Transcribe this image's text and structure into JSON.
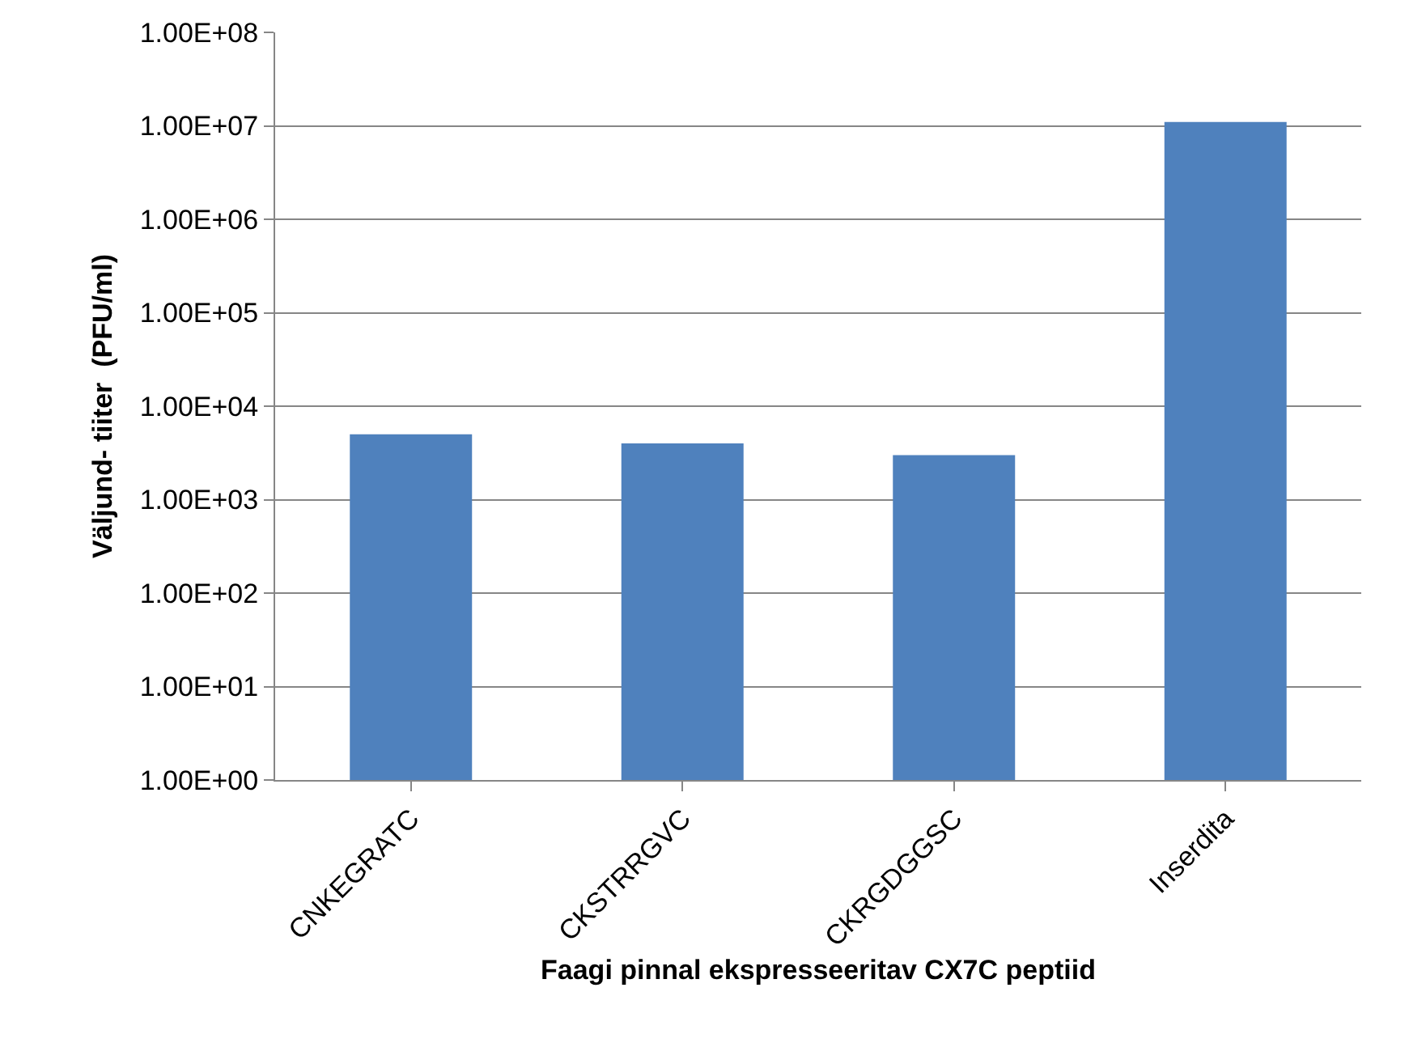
{
  "chart_data": {
    "type": "bar",
    "xlabel": "Faagi pinnal ekspresseeritav CX7C peptiid",
    "ylabel": "Väljund- tiiter  (PFU/ml)",
    "categories": [
      "CNKEGRATC",
      "CKSTRRGVC",
      "CKRGDGGSC",
      "Inserdita"
    ],
    "values": [
      5000,
      4000,
      3000,
      11000000
    ],
    "color": "#4f81bd",
    "log": "y",
    "grid": "y",
    "ylim": [
      1,
      100000000
    ],
    "yticks": [
      {
        "value": 1,
        "label": "1.00E+00"
      },
      {
        "value": 10,
        "label": "1.00E+01"
      },
      {
        "value": 100,
        "label": "1.00E+02"
      },
      {
        "value": 1000,
        "label": "1.00E+03"
      },
      {
        "value": 10000,
        "label": "1.00E+04"
      },
      {
        "value": 100000,
        "label": "1.00E+05"
      },
      {
        "value": 1000000,
        "label": "1.00E+06"
      },
      {
        "value": 10000000,
        "label": "1.00E+07"
      },
      {
        "value": 100000000,
        "label": "1.00E+08"
      }
    ]
  }
}
